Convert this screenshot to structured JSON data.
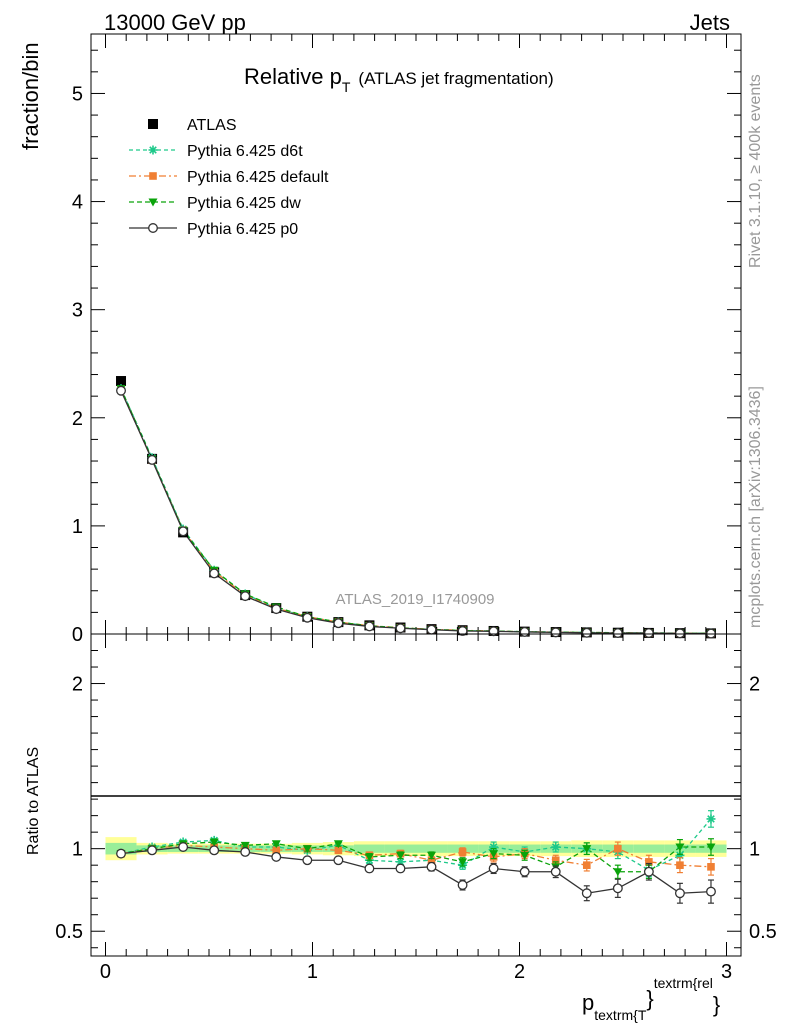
{
  "header": {
    "left": "13000 GeV pp",
    "right": "Jets"
  },
  "title": {
    "main": "Relative p",
    "sub": "T",
    "paren": "(ATLAS jet fragmentation)"
  },
  "side": {
    "rivet": "Rivet 3.1.10, ≥ 400k events",
    "mcplots": "mcplots.cern.ch [arXiv:1306.3436]"
  },
  "watermark": "ATLAS_2019_I1740909",
  "xaxis": {
    "main": "p",
    "sub": "textrm{T",
    "sup": "textrm{rel",
    "brace1": "}",
    "brace2": "}"
  },
  "chart_data": [
    {
      "type": "scatter",
      "ylabel": "fraction/bin",
      "xlim": [
        -0.07,
        3.07
      ],
      "ylim": [
        0,
        5.55
      ],
      "yticks": [
        0,
        1,
        2,
        3,
        4,
        5
      ],
      "ytick_labels": [
        "0",
        "1",
        "2",
        "3",
        "4",
        "5"
      ],
      "x": [
        0.075,
        0.225,
        0.375,
        0.525,
        0.675,
        0.825,
        0.975,
        1.125,
        1.275,
        1.425,
        1.575,
        1.725,
        1.875,
        2.025,
        2.175,
        2.325,
        2.475,
        2.625,
        2.775,
        2.925
      ],
      "series": [
        {
          "name": "ATLAS",
          "style": "data",
          "color": "#000000",
          "values": [
            2.34,
            1.62,
            0.94,
            0.57,
            0.36,
            0.24,
            0.16,
            0.11,
            0.08,
            0.06,
            0.045,
            0.035,
            0.028,
            0.022,
            0.018,
            0.015,
            0.012,
            0.01,
            0.008,
            0.006
          ]
        },
        {
          "name": "Pythia 6.425 d6t",
          "style": "d6t",
          "color": "#1ec98a",
          "values": [
            2.27,
            1.63,
            0.97,
            0.59,
            0.37,
            0.24,
            0.16,
            0.11,
            0.075,
            0.056,
            0.042,
            0.032,
            0.028,
            0.021,
            0.018,
            0.015,
            0.012,
            0.009,
            0.008,
            0.007
          ]
        },
        {
          "name": "Pythia 6.425 default",
          "style": "default",
          "color": "#f07f33",
          "values": [
            2.26,
            1.61,
            0.96,
            0.58,
            0.36,
            0.24,
            0.16,
            0.11,
            0.077,
            0.058,
            0.043,
            0.034,
            0.027,
            0.021,
            0.017,
            0.014,
            0.011,
            0.009,
            0.007,
            0.005
          ]
        },
        {
          "name": "Pythia 6.425 dw",
          "style": "dw",
          "color": "#0aa30a",
          "values": [
            2.27,
            1.62,
            0.96,
            0.59,
            0.37,
            0.25,
            0.16,
            0.11,
            0.076,
            0.057,
            0.042,
            0.032,
            0.027,
            0.021,
            0.016,
            0.015,
            0.01,
            0.009,
            0.008,
            0.006
          ]
        },
        {
          "name": "Pythia 6.425 p0",
          "style": "p0",
          "color": "#333333",
          "values": [
            2.25,
            1.61,
            0.95,
            0.56,
            0.35,
            0.23,
            0.15,
            0.1,
            0.07,
            0.053,
            0.04,
            0.028,
            0.025,
            0.019,
            0.015,
            0.011,
            0.009,
            0.009,
            0.006,
            0.004
          ]
        }
      ]
    },
    {
      "type": "scatter",
      "ylabel": "Ratio to ATLAS",
      "xlim": [
        -0.07,
        3.07
      ],
      "ylim": [
        0.35,
        2.3
      ],
      "yticks": [
        0.5,
        1,
        2
      ],
      "ytick_labels": [
        "0.5",
        "1",
        "2"
      ],
      "xticks": [
        0,
        1,
        2,
        3
      ],
      "xtick_labels": [
        "0",
        "1",
        "2",
        "3"
      ],
      "x": [
        0.075,
        0.225,
        0.375,
        0.525,
        0.675,
        0.825,
        0.975,
        1.125,
        1.275,
        1.425,
        1.575,
        1.725,
        1.875,
        2.025,
        2.175,
        2.325,
        2.475,
        2.625,
        2.775,
        2.925
      ],
      "band_inner": [
        0.035,
        0.02,
        0.02,
        0.02,
        0.02,
        0.02,
        0.02,
        0.02,
        0.025,
        0.025,
        0.025,
        0.025,
        0.025,
        0.025,
        0.025,
        0.025,
        0.025,
        0.025,
        0.025,
        0.025
      ],
      "band_outer": [
        0.07,
        0.035,
        0.03,
        0.03,
        0.03,
        0.03,
        0.035,
        0.04,
        0.045,
        0.045,
        0.045,
        0.045,
        0.045,
        0.045,
        0.045,
        0.05,
        0.05,
        0.05,
        0.05,
        0.05
      ],
      "series": [
        {
          "name": "Pythia 6.425 d6t",
          "style": "d6t",
          "color": "#1ec98a",
          "values": [
            0.97,
            1.01,
            1.04,
            1.05,
            1.01,
            1.01,
            0.99,
            1.02,
            0.93,
            0.92,
            0.93,
            0.9,
            1.01,
            0.98,
            1.01,
            1.0,
            0.98,
            0.87,
            0.96,
            1.18
          ],
          "errors": [
            0.005,
            0.005,
            0.005,
            0.01,
            0.01,
            0.01,
            0.015,
            0.015,
            0.02,
            0.02,
            0.02,
            0.025,
            0.03,
            0.03,
            0.03,
            0.035,
            0.04,
            0.04,
            0.045,
            0.05
          ]
        },
        {
          "name": "Pythia 6.425 default",
          "style": "default",
          "color": "#f07f33",
          "values": [
            0.97,
            1.0,
            1.02,
            1.01,
            1.0,
            0.99,
            1.0,
            0.99,
            0.96,
            0.97,
            0.93,
            0.98,
            0.95,
            0.97,
            0.93,
            0.9,
            1.0,
            0.92,
            0.9,
            0.89
          ],
          "errors": [
            0.005,
            0.005,
            0.005,
            0.01,
            0.01,
            0.01,
            0.015,
            0.015,
            0.02,
            0.02,
            0.02,
            0.025,
            0.03,
            0.03,
            0.03,
            0.035,
            0.04,
            0.04,
            0.045,
            0.05
          ]
        },
        {
          "name": "Pythia 6.425 dw",
          "style": "dw",
          "color": "#0aa30a",
          "values": [
            0.97,
            1.0,
            1.03,
            1.04,
            1.02,
            1.03,
            1.0,
            1.03,
            0.95,
            0.96,
            0.96,
            0.92,
            0.97,
            0.96,
            0.89,
            1.0,
            0.86,
            0.86,
            1.01,
            1.01
          ],
          "errors": [
            0.005,
            0.005,
            0.005,
            0.01,
            0.01,
            0.01,
            0.015,
            0.015,
            0.02,
            0.02,
            0.02,
            0.025,
            0.03,
            0.03,
            0.03,
            0.035,
            0.04,
            0.04,
            0.045,
            0.05
          ]
        },
        {
          "name": "Pythia 6.425 p0",
          "style": "p0",
          "color": "#333333",
          "values": [
            0.97,
            0.99,
            1.01,
            0.99,
            0.98,
            0.95,
            0.93,
            0.93,
            0.88,
            0.88,
            0.89,
            0.78,
            0.88,
            0.86,
            0.86,
            0.73,
            0.76,
            0.86,
            0.73,
            0.74
          ],
          "errors": [
            0.008,
            0.008,
            0.008,
            0.01,
            0.01,
            0.012,
            0.012,
            0.015,
            0.02,
            0.02,
            0.025,
            0.03,
            0.03,
            0.03,
            0.035,
            0.045,
            0.055,
            0.05,
            0.06,
            0.07
          ]
        }
      ]
    }
  ]
}
